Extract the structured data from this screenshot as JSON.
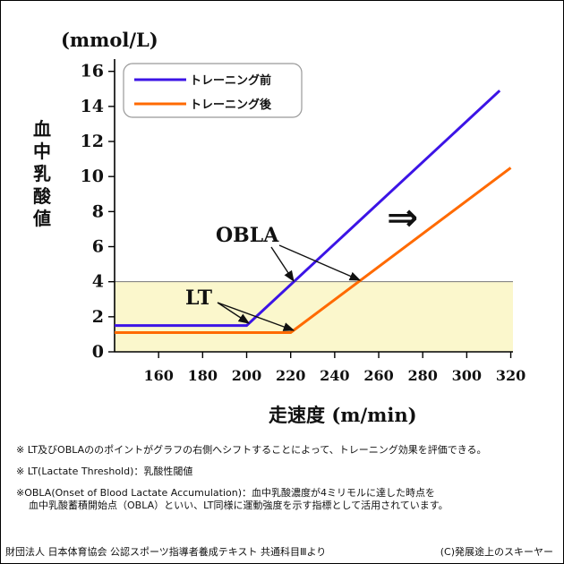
{
  "chart_data": {
    "type": "line",
    "unit_label": "(mmol/L)",
    "ylabel": "血中乳酸値",
    "xlabel_jp": "走速度",
    "xlabel_unit": "(m/min)",
    "x_ticks": [
      160,
      180,
      200,
      220,
      240,
      260,
      280,
      300,
      320
    ],
    "y_ticks": [
      0,
      2,
      4,
      6,
      8,
      10,
      12,
      14,
      16
    ],
    "xlim": [
      140,
      321
    ],
    "ylim": [
      0,
      16.7
    ],
    "threshold_band": {
      "from": 0,
      "to": 4,
      "color": "#fbf7cc"
    },
    "series": [
      {
        "name": "トレーニング前",
        "color": "#3c14e6",
        "points": [
          [
            140,
            1.5
          ],
          [
            200,
            1.5
          ],
          [
            315,
            14.9
          ]
        ]
      },
      {
        "name": "トレーニング後",
        "color": "#ff6a00",
        "points": [
          [
            140,
            1.1
          ],
          [
            220,
            1.1
          ],
          [
            320,
            10.5
          ]
        ]
      }
    ],
    "annotations": {
      "obla": {
        "text": "OBLA"
      },
      "lt": {
        "text": "LT"
      },
      "shift_arrow": "⇒"
    },
    "colors": {
      "axis": "#000000",
      "band_edge": "#777777"
    }
  },
  "notes": [
    "※ LT及びOBLAののポイントがグラフの右側へシフトすることによって、トレーニング効果を評価できる。",
    "※ LT(Lactate Threshold)：乳酸性閾値",
    "※OBLA(Onset of Blood Lactate Accumulation)：血中乳酸濃度が4ミリモルに達した時点を",
    "血中乳酸蓄積開始点（OBLA）といい、LT同様に運動強度を示す指標として活用されています。"
  ],
  "footer": {
    "source": "財団法人 日本体育協会 公認スポーツ指導者養成テキスト 共通科目Ⅲより",
    "copyright": "(C)発展途上のスキーヤー"
  }
}
